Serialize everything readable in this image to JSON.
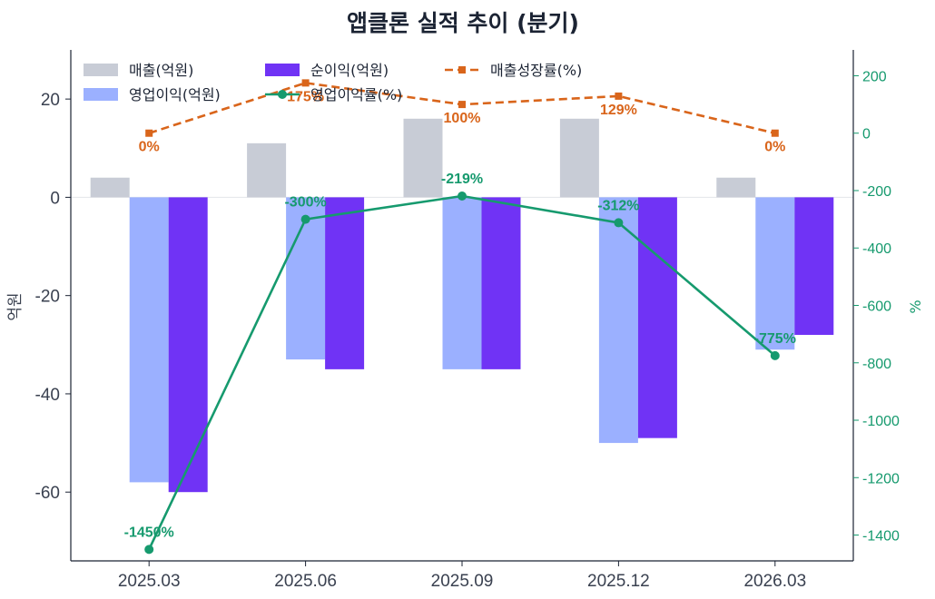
{
  "chart_data": {
    "type": "bar",
    "title": "앱클론 실적 추이 (분기)",
    "xlabel": "",
    "ylabel": "억원",
    "y2label": "%",
    "categories": [
      "2025.03",
      "2025.06",
      "2025.09",
      "2025.12",
      "2026.03"
    ],
    "ylim": [
      -74,
      30
    ],
    "y2lim": [
      -1490,
      290
    ],
    "yticks": [
      -60,
      -40,
      -20,
      0,
      20
    ],
    "y2ticks": [
      -1400,
      -1200,
      -1000,
      -800,
      -600,
      -400,
      -200,
      0,
      200
    ],
    "legend_position": "top-left",
    "grid": false,
    "series": [
      {
        "name": "매출(억원)",
        "type": "bar",
        "axis": "left",
        "color": "#c8ccd6",
        "values": [
          4,
          11,
          16,
          16,
          4
        ]
      },
      {
        "name": "영업이익(억원)",
        "type": "bar",
        "axis": "left",
        "color": "#9bb0ff",
        "values": [
          -58,
          -33,
          -35,
          -50,
          -31
        ]
      },
      {
        "name": "순이익(억원)",
        "type": "bar",
        "axis": "left",
        "color": "#7033f5",
        "values": [
          -60,
          -35,
          -35,
          -49,
          -28
        ]
      },
      {
        "name": "영업이익률(%)",
        "type": "line",
        "axis": "right",
        "color": "#169a6e",
        "values": [
          -1450,
          -300,
          -219,
          -312,
          -775
        ],
        "labels": [
          "-1450%",
          "-300%",
          "-219%",
          "-312%",
          "-775%"
        ]
      },
      {
        "name": "매출성장률(%)",
        "type": "line",
        "axis": "right",
        "dashed": true,
        "color": "#d9651b",
        "values": [
          0,
          175,
          100,
          129,
          0
        ],
        "labels": [
          "0%",
          "175%",
          "100%",
          "129%",
          "0%"
        ]
      }
    ]
  }
}
